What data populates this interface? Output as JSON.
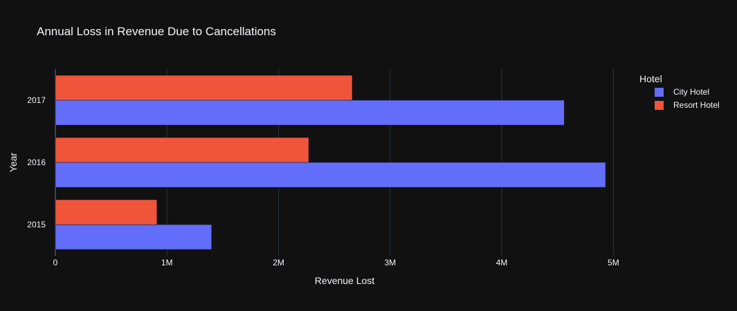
{
  "chart_data": {
    "type": "bar",
    "orientation": "horizontal",
    "title": "Annual Loss in Revenue Due to Cancellations",
    "xlabel": "Revenue Lost",
    "ylabel": "Year",
    "categories": [
      "2015",
      "2016",
      "2017"
    ],
    "xlim": [
      0,
      5500000
    ],
    "x_ticks": [
      {
        "value": 0,
        "label": "0"
      },
      {
        "value": 1000000,
        "label": "1M"
      },
      {
        "value": 2000000,
        "label": "2M"
      },
      {
        "value": 3000000,
        "label": "3M"
      },
      {
        "value": 4000000,
        "label": "4M"
      },
      {
        "value": 5000000,
        "label": "5M"
      }
    ],
    "grid": true,
    "legend": {
      "title": "Hotel",
      "placement": "right"
    },
    "series": [
      {
        "name": "City Hotel",
        "color": "#636efa",
        "values": [
          1400000,
          4930000,
          4560000
        ]
      },
      {
        "name": "Resort Hotel",
        "color": "#ef553b",
        "values": [
          910000,
          2270000,
          2660000
        ]
      }
    ],
    "colors": {
      "background": "#111111",
      "grid": "#283442",
      "text": "#f2f5fa"
    }
  }
}
